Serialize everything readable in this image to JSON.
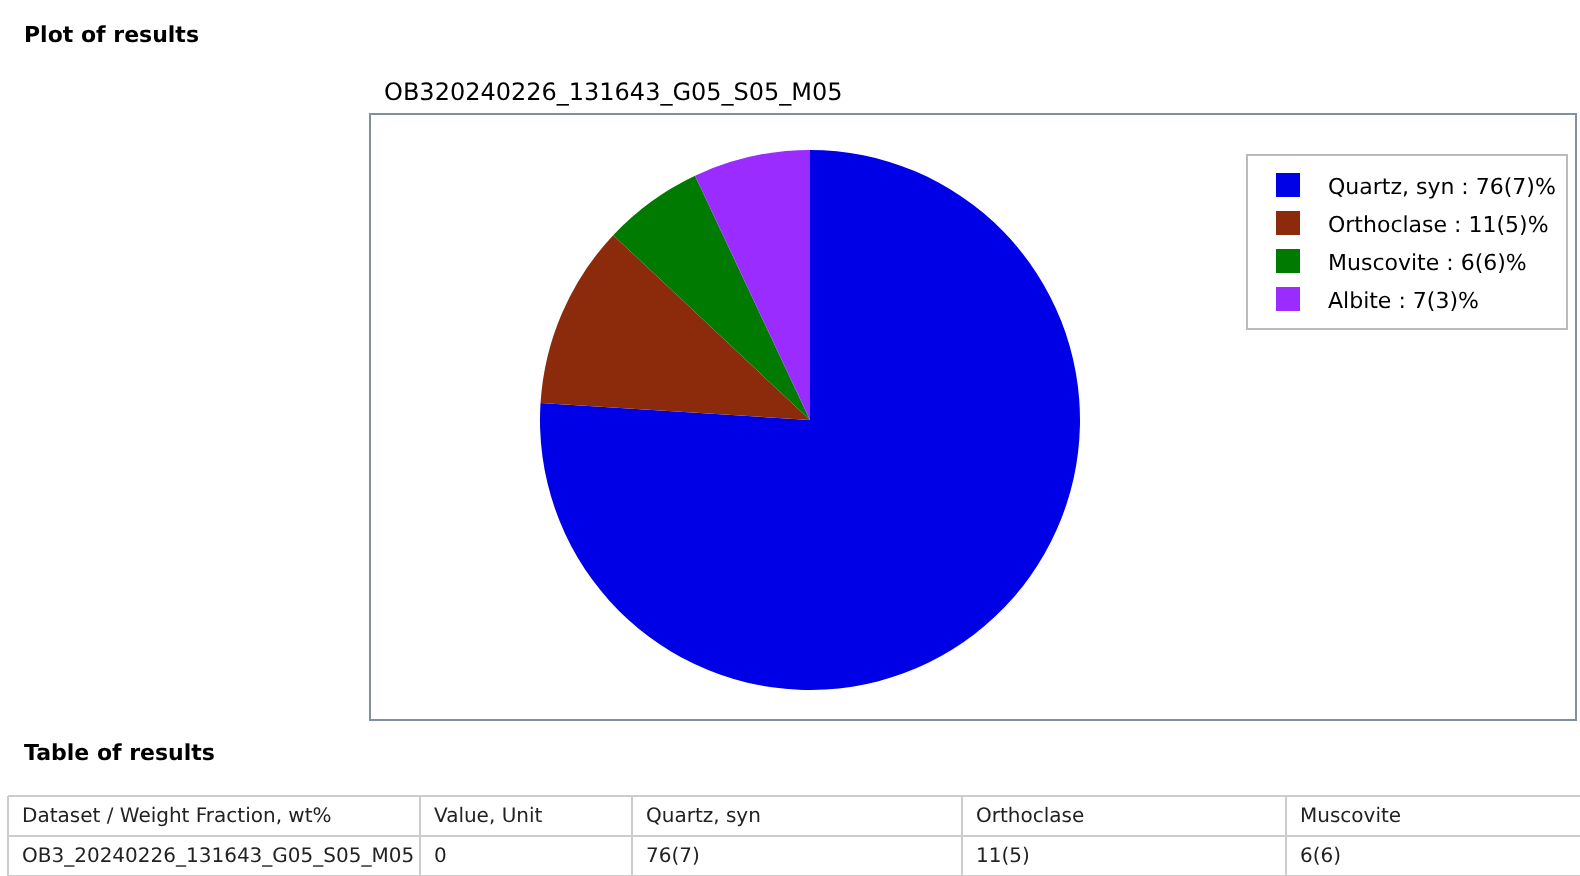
{
  "chart_data": {
    "type": "pie",
    "title": "OB320240226_131643_G05_S05_M05",
    "categories": [
      "Quartz, syn : 76(7)%",
      "Orthoclase : 11(5)%",
      "Muscovite : 6(6)%",
      "Albite : 7(3)%"
    ],
    "values": [
      76,
      11,
      6,
      7
    ],
    "colors": [
      "#0000e6",
      "#8b2b0b",
      "#007a00",
      "#9a2cff"
    ],
    "legend": "top right",
    "annotations": [
      "Plot of results",
      "Table of results",
      "Dataset / Weight Fraction, wt%",
      "Value, Unit",
      "Quartz, syn",
      "Orthoclase",
      "Muscovite",
      "OB3_20240226_131643_G05_S05_M05",
      "0",
      "76(7)",
      "11(5)",
      "6(6)"
    ]
  }
}
